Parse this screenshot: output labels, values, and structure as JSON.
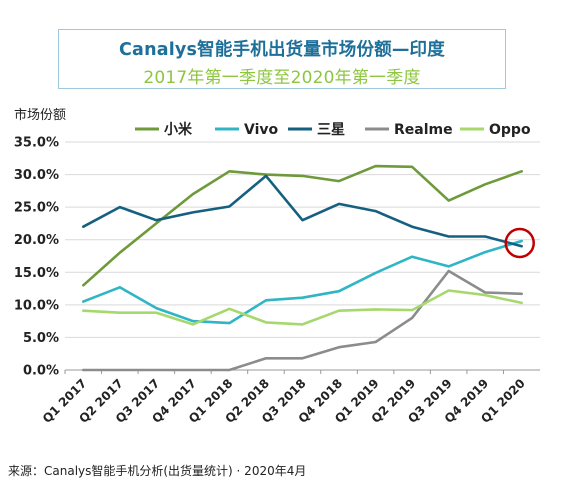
{
  "chart_data": {
    "type": "line",
    "title": "Canalys智能手机出货量市场份额—印度",
    "subtitle": "2017年第一季度至2020年第一季度",
    "ylabel": "市场份额",
    "ylim": [
      0,
      35
    ],
    "yticks": [
      "0.0%",
      "5.0%",
      "10.0%",
      "15.0%",
      "20.0%",
      "25.0%",
      "30.0%",
      "35.0%"
    ],
    "categories": [
      "Q1 2017",
      "Q2 2017",
      "Q3 2017",
      "Q4 2017",
      "Q1 2018",
      "Q2 2018",
      "Q3 2018",
      "Q4 2018",
      "Q1 2019",
      "Q2 2019",
      "Q3 2019",
      "Q4 2019",
      "Q1 2020"
    ],
    "grid": true,
    "legend_position": "top",
    "series": [
      {
        "name": "小米",
        "color": "#6e9a3b",
        "values": [
          13.0,
          18.0,
          22.5,
          27.0,
          30.5,
          30.0,
          29.8,
          29.0,
          31.3,
          31.2,
          26.0,
          28.5,
          30.5
        ]
      },
      {
        "name": "Vivo",
        "color": "#2fb5c3",
        "values": [
          10.5,
          12.7,
          9.5,
          7.5,
          7.2,
          10.7,
          11.1,
          12.1,
          14.9,
          17.4,
          15.9,
          18.1,
          19.8
        ]
      },
      {
        "name": "三星",
        "color": "#16607f",
        "values": [
          22.0,
          25.0,
          23.0,
          24.2,
          25.1,
          29.8,
          23.0,
          25.5,
          24.4,
          22.0,
          20.5,
          20.5,
          19.0
        ]
      },
      {
        "name": "Realme",
        "color": "#8c8c8c",
        "values": [
          0,
          0,
          0,
          0,
          0,
          1.8,
          1.8,
          3.5,
          4.3,
          8.0,
          15.2,
          11.9,
          11.7
        ]
      },
      {
        "name": "Oppo",
        "color": "#a6d86e",
        "values": [
          9.1,
          8.8,
          8.8,
          7.0,
          9.4,
          7.3,
          7.0,
          9.1,
          9.3,
          9.2,
          12.2,
          11.5,
          10.3
        ]
      }
    ],
    "annotation": {
      "type": "circle",
      "category": "Q1 2020",
      "value": 19.5,
      "color": "#c00000"
    }
  },
  "source": "来源：Canalys智能手机分析(出货量统计) · 2020年4月"
}
